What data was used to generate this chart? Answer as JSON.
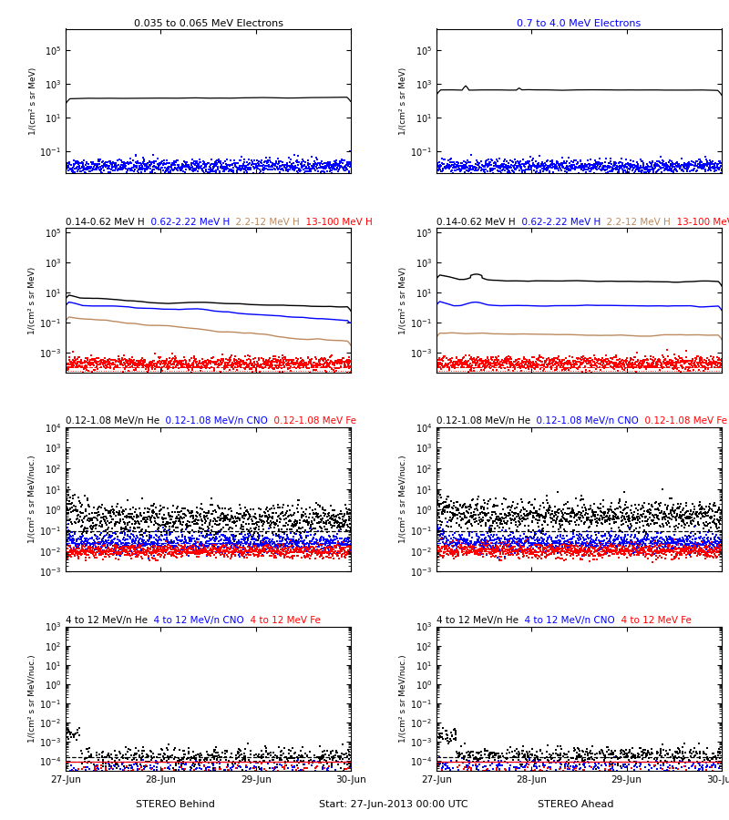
{
  "row1_left_title": [
    {
      "text": "0.035 to 0.065 MeV Electrons",
      "color": "black"
    }
  ],
  "row1_right_title": [
    {
      "text": "0.7 to 4.0 MeV Electrons",
      "color": "blue"
    }
  ],
  "row2_title": [
    {
      "text": "0.14-0.62 MeV H",
      "color": "black"
    },
    {
      "text": "  0.62-2.22 MeV H",
      "color": "blue"
    },
    {
      "text": "  2.2-12 MeV H",
      "color": "#bc8a60"
    },
    {
      "text": "  13-100 MeV H",
      "color": "red"
    }
  ],
  "row3_title": [
    {
      "text": "0.12-1.08 MeV/n He",
      "color": "black"
    },
    {
      "text": "  0.12-1.08 MeV/n CNO",
      "color": "blue"
    },
    {
      "text": "  0.12-1.08 MeV Fe",
      "color": "red"
    }
  ],
  "row4_title": [
    {
      "text": "4 to 12 MeV/n He",
      "color": "black"
    },
    {
      "text": "  4 to 12 MeV/n CNO",
      "color": "blue"
    },
    {
      "text": "  4 to 12 MeV Fe",
      "color": "red"
    }
  ],
  "xlabel_left": "STEREO Behind",
  "xlabel_right": "STEREO Ahead",
  "xlabel_center": "Start: 27-Jun-2013 00:00 UTC",
  "ylabel_electrons": "1/(cm² s sr MeV)",
  "ylabel_protons": "1/(cm² s sr MeV)",
  "ylabel_heavy": "1/(cm² s sr MeV/nuc.)",
  "xtick_labels": [
    "27-Jun",
    "28-Jun",
    "29-Jun",
    "30-Jun"
  ],
  "row1_ylim": [
    0.005,
    2000000.0
  ],
  "row2_ylim": [
    5e-05,
    200000.0
  ],
  "row3_ylim": [
    0.001,
    10000.0
  ],
  "row4_ylim": [
    3e-05,
    1000.0
  ]
}
